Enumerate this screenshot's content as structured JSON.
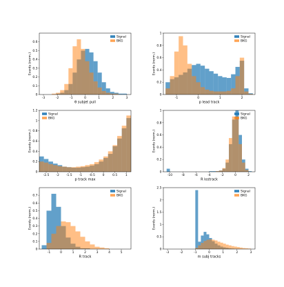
{
  "chart_data": [
    {
      "type": "histogram",
      "xlabel": "θ subjet pull",
      "ylabel": "Events (norm.)",
      "legend": "upper right",
      "xlim": [
        -3.3,
        3.3
      ],
      "ylim": [
        0,
        0.7
      ],
      "xticks": [
        -3,
        -2,
        -1,
        0,
        1,
        2,
        3
      ],
      "yticks": [
        0,
        0.1,
        0.2,
        0.3,
        0.4,
        0.5,
        0.6
      ],
      "bins": [
        -3,
        -2.7,
        -2.4,
        -2.1,
        -1.8,
        -1.5,
        -1.2,
        -0.9,
        -0.6,
        -0.3,
        0,
        0.3,
        0.6,
        0.9,
        1.2,
        1.5,
        1.8,
        2.1,
        2.4,
        2.7,
        3
      ],
      "series": [
        {
          "name": "Signal",
          "color": "#1f77b4",
          "values": [
            0,
            0,
            0,
            0.01,
            0.02,
            0.05,
            0.12,
            0.25,
            0.4,
            0.5,
            0.52,
            0.48,
            0.38,
            0.25,
            0.14,
            0.07,
            0.03,
            0.02,
            0.01,
            0.01
          ]
        },
        {
          "name": "BKG",
          "color": "#ff7f0e",
          "values": [
            0,
            0,
            0.01,
            0.02,
            0.05,
            0.12,
            0.3,
            0.55,
            0.63,
            0.52,
            0.38,
            0.25,
            0.15,
            0.08,
            0.04,
            0.02,
            0.01,
            0.01,
            0,
            0
          ]
        }
      ]
    },
    {
      "type": "histogram",
      "xlabel": "p lead track",
      "ylabel": "Events (norm.)",
      "legend": "upper right",
      "xlim": [
        -1.6,
        2.6
      ],
      "ylim": [
        0,
        1.0
      ],
      "xticks": [
        -1,
        0,
        1,
        2
      ],
      "yticks": [
        0,
        0.2,
        0.4,
        0.6,
        0.8,
        1.0
      ],
      "bins": [
        -1.5,
        -1.3,
        -1.1,
        -0.9,
        -0.7,
        -0.5,
        -0.3,
        -0.1,
        0.1,
        0.3,
        0.5,
        0.7,
        0.9,
        1.1,
        1.3,
        1.5,
        1.7,
        1.9,
        2.1,
        2.3,
        2.5
      ],
      "series": [
        {
          "name": "Signal",
          "color": "#1f77b4",
          "values": [
            0.2,
            0.25,
            0.28,
            0.32,
            0.36,
            0.42,
            0.48,
            0.5,
            0.47,
            0.42,
            0.38,
            0.34,
            0.3,
            0.28,
            0.27,
            0.33,
            0.45,
            0.55,
            0.1,
            0.02
          ]
        },
        {
          "name": "BKG",
          "color": "#ff7f0e",
          "values": [
            0.1,
            0.3,
            0.7,
            0.95,
            0.8,
            0.5,
            0.3,
            0.2,
            0.12,
            0.08,
            0.06,
            0.05,
            0.05,
            0.05,
            0.06,
            0.1,
            0.3,
            0.6,
            0.05,
            0.01
          ]
        }
      ]
    },
    {
      "type": "histogram",
      "xlabel": "p track max",
      "ylabel": "Events (norm.)",
      "legend": "upper left",
      "xlim": [
        -2.8,
        1.2
      ],
      "ylim": [
        0,
        1.2
      ],
      "xticks": [
        -2.5,
        -2.0,
        -1.5,
        -1.0,
        -0.5,
        0.0,
        0.5,
        1.0
      ],
      "yticks": [
        0,
        0.2,
        0.4,
        0.6,
        0.8,
        1.0,
        1.2
      ],
      "bins": [
        -2.8,
        -2.6,
        -2.4,
        -2.2,
        -2.0,
        -1.8,
        -1.6,
        -1.4,
        -1.2,
        -1.0,
        -0.8,
        -0.6,
        -0.4,
        -0.2,
        0,
        0.2,
        0.4,
        0.6,
        0.8,
        1.0,
        1.2
      ],
      "series": [
        {
          "name": "Signal",
          "color": "#1f77b4",
          "values": [
            0.3,
            0.25,
            0.2,
            0.16,
            0.13,
            0.1,
            0.09,
            0.08,
            0.08,
            0.09,
            0.1,
            0.12,
            0.15,
            0.2,
            0.27,
            0.35,
            0.5,
            0.65,
            0.85,
            1.05
          ]
        },
        {
          "name": "BKG",
          "color": "#ff7f0e",
          "values": [
            0.2,
            0.18,
            0.15,
            0.13,
            0.11,
            0.1,
            0.09,
            0.09,
            0.1,
            0.11,
            0.13,
            0.15,
            0.19,
            0.24,
            0.3,
            0.4,
            0.52,
            0.7,
            0.9,
            1.1
          ]
        }
      ]
    },
    {
      "type": "histogram",
      "xlabel": "R lostrack",
      "ylabel": "Events (norm.)",
      "legend": "upper right",
      "xlim": [
        -11,
        3
      ],
      "ylim": [
        0,
        1.0
      ],
      "xticks": [
        -10,
        -8,
        -6,
        -4,
        -2,
        0,
        2
      ],
      "yticks": [
        0,
        0.2,
        0.4,
        0.6,
        0.8,
        1.0
      ],
      "bins": [
        -11,
        -10.5,
        -10,
        -9.5,
        -9,
        -8.5,
        -8,
        -7.5,
        -7,
        -6.5,
        -6,
        -5.5,
        -5,
        -4.5,
        -4,
        -3.5,
        -3,
        -2.5,
        -2,
        -1.5,
        -1,
        -0.5,
        0,
        0.5,
        1,
        1.5,
        2,
        2.5,
        3
      ],
      "series": [
        {
          "name": "Signal",
          "color": "#1f77b4",
          "values": [
            0,
            0.05,
            0,
            0,
            0,
            0,
            0,
            0,
            0,
            0,
            0,
            0,
            0,
            0,
            0.01,
            0.01,
            0.01,
            0.02,
            0.05,
            0.15,
            0.45,
            0.85,
            1.0,
            0.6,
            0.2,
            0.05,
            0.01,
            0
          ]
        },
        {
          "name": "BKG",
          "color": "#ff7f0e",
          "values": [
            0,
            0,
            0,
            0,
            0,
            0,
            0,
            0,
            0,
            0,
            0,
            0,
            0,
            0,
            0,
            0,
            0.01,
            0.02,
            0.06,
            0.2,
            0.55,
            0.9,
            0.9,
            0.45,
            0.15,
            0.03,
            0,
            0
          ]
        }
      ]
    },
    {
      "type": "histogram",
      "xlabel": "R track",
      "ylabel": "Events (norm.)",
      "legend": "upper right",
      "xlim": [
        -1.8,
        5.8
      ],
      "ylim": [
        0,
        0.8
      ],
      "xticks": [
        -1,
        0,
        1,
        2,
        3,
        4,
        5
      ],
      "yticks": [
        0,
        0.1,
        0.2,
        0.3,
        0.4,
        0.5,
        0.6,
        0.7
      ],
      "bins": [
        -1.6,
        -1.2,
        -0.8,
        -0.4,
        0,
        0.4,
        0.8,
        1.2,
        1.6,
        2.0,
        2.4,
        2.8,
        3.2,
        3.6,
        4.0,
        4.4,
        4.8,
        5.2,
        5.6
      ],
      "series": [
        {
          "name": "Signal",
          "color": "#1f77b4",
          "values": [
            0.05,
            0.5,
            0.72,
            0.55,
            0.3,
            0.15,
            0.07,
            0.03,
            0.01,
            0.01,
            0,
            0,
            0,
            0,
            0,
            0,
            0,
            0
          ]
        },
        {
          "name": "BKG",
          "color": "#ff7f0e",
          "values": [
            0,
            0.08,
            0.2,
            0.3,
            0.36,
            0.35,
            0.3,
            0.23,
            0.16,
            0.1,
            0.06,
            0.03,
            0.02,
            0.01,
            0,
            0,
            0,
            0
          ]
        }
      ]
    },
    {
      "type": "histogram",
      "xlabel": "m subj tracks",
      "ylabel": "Events (norm.)",
      "legend": "upper right",
      "xlim": [
        -3.3,
        3.3
      ],
      "ylim": [
        0,
        2.5
      ],
      "xticks": [
        -3,
        -2,
        -1,
        0,
        1,
        2,
        3
      ],
      "yticks": [
        0,
        0.5,
        1.0,
        1.5,
        2.0,
        2.5
      ],
      "bins": [
        -3,
        -2.8,
        -2.6,
        -2.4,
        -2.2,
        -2.0,
        -1.8,
        -1.6,
        -1.4,
        -1.2,
        -1.0,
        -0.8,
        -0.6,
        -0.4,
        -0.2,
        0,
        0.2,
        0.4,
        0.6,
        0.8,
        1.0,
        1.2,
        1.4,
        1.6,
        1.8,
        2.0,
        2.2,
        2.4,
        2.6,
        2.8,
        3.0
      ],
      "series": [
        {
          "name": "Signal",
          "color": "#1f77b4",
          "values": [
            0,
            0,
            0,
            0,
            0,
            0,
            0,
            0,
            0,
            0,
            2.4,
            0.3,
            0.55,
            0.7,
            0.6,
            0.45,
            0.32,
            0.22,
            0.15,
            0.1,
            0.07,
            0.05,
            0.03,
            0.02,
            0.01,
            0.01,
            0,
            0,
            0,
            0
          ]
        },
        {
          "name": "BKG",
          "color": "#ff7f0e",
          "values": [
            0,
            0,
            0,
            0,
            0,
            0,
            0,
            0,
            0,
            0,
            0.05,
            0.15,
            0.25,
            0.33,
            0.38,
            0.4,
            0.38,
            0.35,
            0.3,
            0.26,
            0.22,
            0.18,
            0.15,
            0.12,
            0.1,
            0.08,
            0.06,
            0.04,
            0.03,
            0.02
          ]
        }
      ]
    }
  ]
}
